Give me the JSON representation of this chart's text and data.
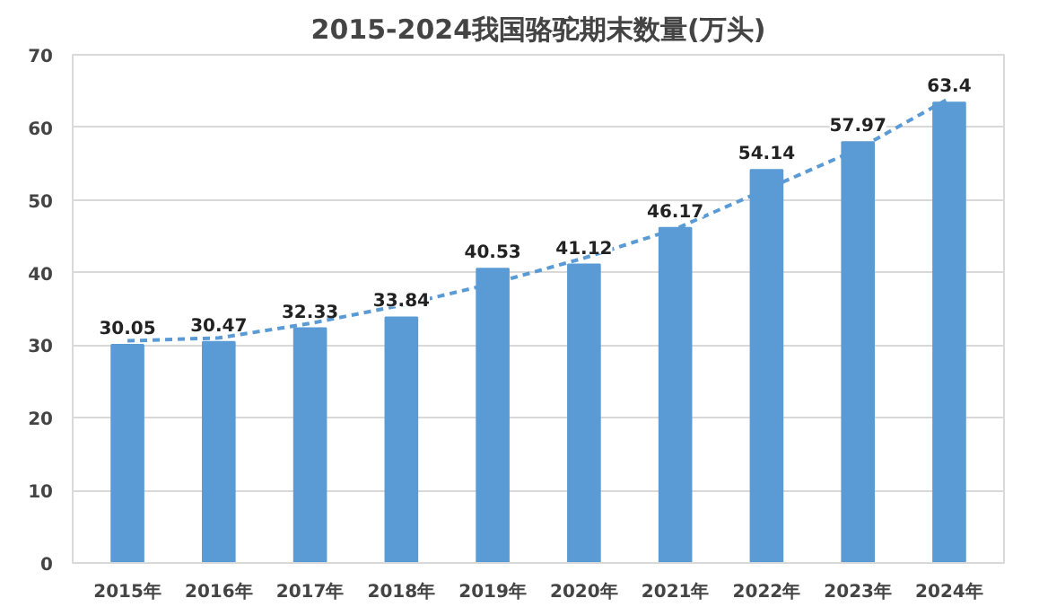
{
  "chart_data": {
    "type": "bar",
    "title": "2015-2024我国骆驼期末数量(万头)",
    "categories": [
      "2015年",
      "2016年",
      "2017年",
      "2018年",
      "2019年",
      "2020年",
      "2021年",
      "2022年",
      "2023年",
      "2024年"
    ],
    "series": [
      {
        "color": "#5b9bd5",
        "values": [
          30.05,
          30.47,
          32.33,
          33.84,
          40.53,
          41.12,
          46.17,
          54.14,
          57.97,
          63.4
        ],
        "value_labels": [
          "30.05",
          "30.47",
          "32.33",
          "33.84",
          "40.53",
          "41.12",
          "46.17",
          "54.14",
          "57.97",
          "63.4"
        ]
      },
      {
        "type": "line",
        "color": "#5b9bd5",
        "line_style": "dashed",
        "marker": "none",
        "values": [
          30.6,
          31.0,
          33.0,
          35.5,
          38.5,
          42.0,
          46.0,
          51.5,
          57.0,
          64.0
        ]
      }
    ],
    "ylim": [
      0,
      70
    ],
    "yticks": [
      0,
      10,
      20,
      30,
      40,
      50,
      60,
      70
    ],
    "grid": "y"
  }
}
